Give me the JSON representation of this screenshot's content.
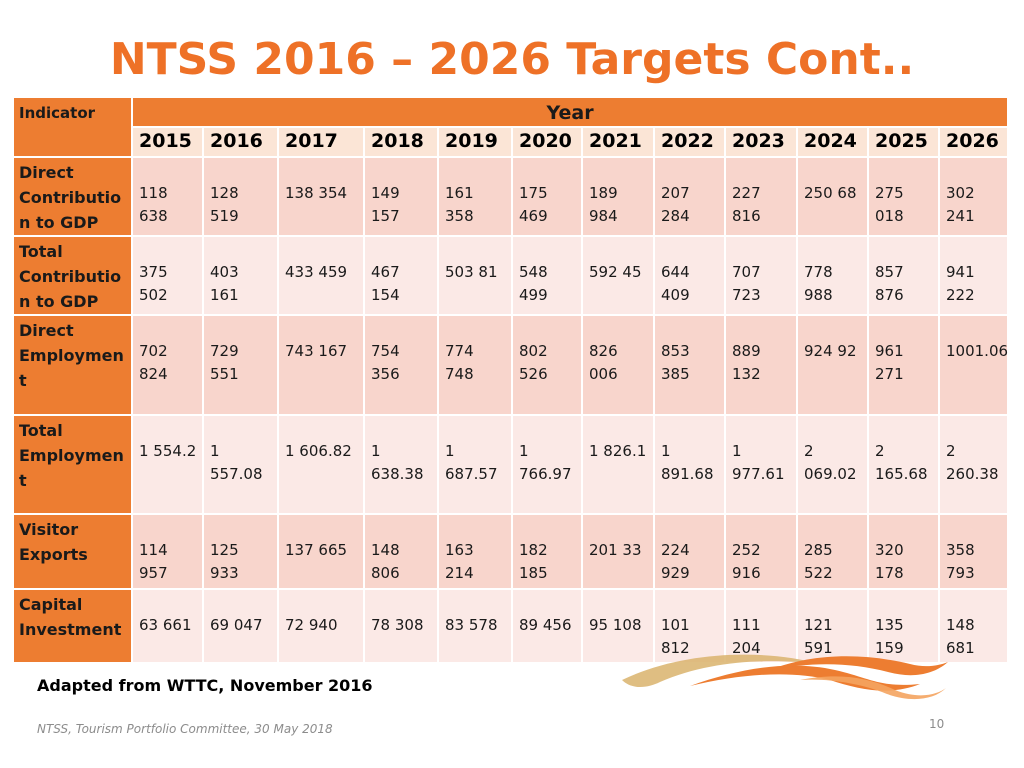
{
  "title": "NTSS 2016 – 2026 Targets Cont..",
  "table": {
    "indicator_header": "Indicator",
    "year_header": "Year",
    "years": [
      "2015",
      "2016",
      "2017",
      "2018",
      "2019",
      "2020",
      "2021",
      "2022",
      "2023",
      "2024",
      "2025",
      "2026"
    ],
    "rows": [
      {
        "label": "Direct Contributio n to GDP",
        "values": [
          "118 638",
          "128 519",
          "138 354",
          "149 157",
          "161 358",
          "175 469",
          "189 984",
          "207 284",
          "227 816",
          "250 68",
          "275 018",
          "302 241"
        ]
      },
      {
        "label": "Total Contributio n to GDP",
        "values": [
          "375 502",
          "403 161",
          "433 459",
          "467 154",
          "503 81",
          "548 499",
          "592 45",
          "644 409",
          "707 723",
          "778 988",
          "857 876",
          "941 222"
        ]
      },
      {
        "label": "Direct Employmen t",
        "values": [
          "702 824",
          "729 551",
          "743 167",
          "754 356",
          "774 748",
          "802 526",
          "826 006",
          "853 385",
          "889 132",
          "924 92",
          "961 271",
          "1001.06"
        ]
      },
      {
        "label": "Total Employmen t",
        "values": [
          "1 554.2",
          "1 557.08",
          "1 606.82",
          "1 638.38",
          "1 687.57",
          "1 766.97",
          "1 826.1",
          "1 891.68",
          "1 977.61",
          "2 069.02",
          "2 165.68",
          "2 260.38"
        ]
      },
      {
        "label": "Visitor Exports",
        "values": [
          "114 957",
          "125 933",
          "137 665",
          "148 806",
          "163 214",
          "182 185",
          "201 33",
          "224 929",
          "252 916",
          "285 522",
          "320 178",
          "358 793"
        ]
      },
      {
        "label": "Capital Investment",
        "values": [
          "63 661",
          "69 047",
          "72 940",
          "78 308",
          "83 578",
          "89 456",
          "95 108",
          "101 812",
          "111 204",
          "121 591",
          "135 159",
          "148 681"
        ]
      }
    ]
  },
  "note": "Adapted from WTTC, November 2016",
  "footer": "NTSS, Tourism Portfolio Committee, 30 May 2018",
  "page_number": "10",
  "colors": {
    "title": "#ee7127",
    "header": "#ed7d31",
    "row_odd": "#f8d5cc",
    "row_even": "#fbe9e6"
  }
}
